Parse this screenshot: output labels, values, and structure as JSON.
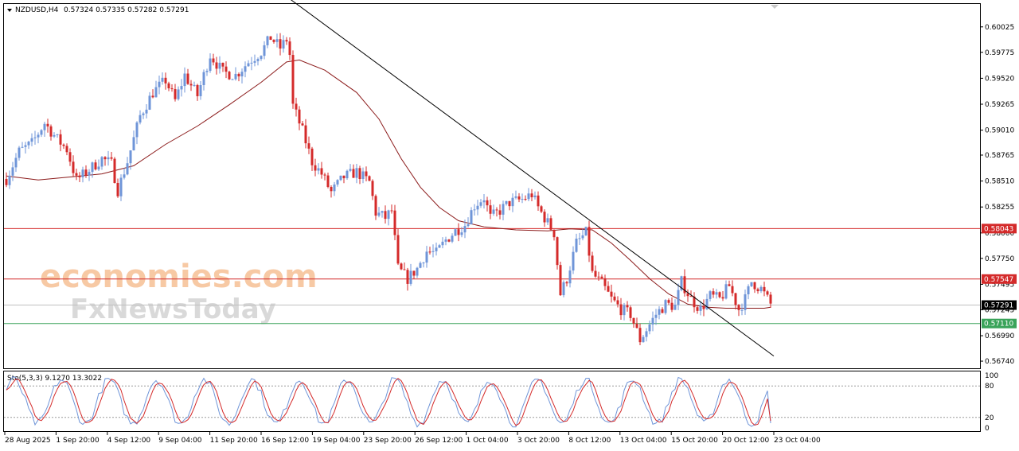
{
  "header": {
    "symbol": "NZDUSD,H4",
    "ohlc": "0.57324 0.57335 0.57282 0.57291"
  },
  "watermark": {
    "brand": "economies.com",
    "sub": "FxNewsToday"
  },
  "colors": {
    "bull": "#6f95d8",
    "bear": "#d42a2a",
    "ma": "#8b1a1a",
    "resistance": "#d42a2a",
    "support": "#3aa35a",
    "current": "#000000",
    "stoch_k": "#6f95d8",
    "stoch_d": "#d42a2a"
  },
  "chart_data": {
    "type": "candlestick",
    "symbol": "NZDUSD",
    "timeframe": "H4",
    "y_ticks": [
      "0.60025",
      "0.59775",
      "0.59520",
      "0.59265",
      "0.59010",
      "0.58765",
      "0.58510",
      "0.58255",
      "0.58000",
      "0.57750",
      "0.57495",
      "0.57245",
      "0.56990",
      "0.56740"
    ],
    "ylim": [
      0.5667,
      0.6025
    ],
    "x_ticks": [
      "28 Aug 2025",
      "1 Sep 20:00",
      "4 Sep 12:00",
      "9 Sep 04:00",
      "11 Sep 20:00",
      "16 Sep 12:00",
      "19 Sep 04:00",
      "23 Sep 20:00",
      "26 Sep 12:00",
      "1 Oct 04:00",
      "3 Oct 20:00",
      "8 Oct 12:00",
      "13 Oct 04:00",
      "15 Oct 20:00",
      "20 Oct 12:00",
      "23 Oct 04:00"
    ],
    "levels": [
      {
        "label": "0.58043",
        "value": 0.58043,
        "role": "resistance"
      },
      {
        "label": "0.57547",
        "value": 0.57547,
        "role": "resistance"
      },
      {
        "label": "0.57291",
        "value": 0.57291,
        "role": "current"
      },
      {
        "label": "0.57110",
        "value": 0.5711,
        "role": "support"
      }
    ],
    "trendline": {
      "from": {
        "bar": 89,
        "price": 0.603
      },
      "to": {
        "bar": 241,
        "price": 0.5679
      }
    },
    "close_path": [
      [
        0,
        0.5853
      ],
      [
        4,
        0.588
      ],
      [
        8,
        0.5888
      ],
      [
        12,
        0.5908
      ],
      [
        16,
        0.5892
      ],
      [
        19,
        0.5882
      ],
      [
        22,
        0.5852
      ],
      [
        26,
        0.5862
      ],
      [
        30,
        0.5873
      ],
      [
        33,
        0.5868
      ],
      [
        35,
        0.5842
      ],
      [
        38,
        0.587
      ],
      [
        42,
        0.5915
      ],
      [
        46,
        0.5938
      ],
      [
        50,
        0.595
      ],
      [
        53,
        0.593
      ],
      [
        56,
        0.5955
      ],
      [
        60,
        0.5935
      ],
      [
        64,
        0.5975
      ],
      [
        68,
        0.5958
      ],
      [
        72,
        0.5955
      ],
      [
        76,
        0.5968
      ],
      [
        80,
        0.5978
      ],
      [
        83,
        0.5992
      ],
      [
        86,
        0.5982
      ],
      [
        88,
        0.599
      ],
      [
        89,
        0.5975
      ],
      [
        90,
        0.5925
      ],
      [
        93,
        0.59
      ],
      [
        96,
        0.587
      ],
      [
        99,
        0.5858
      ],
      [
        102,
        0.584
      ],
      [
        106,
        0.5855
      ],
      [
        110,
        0.586
      ],
      [
        114,
        0.585
      ],
      [
        116,
        0.582
      ],
      [
        119,
        0.5815
      ],
      [
        121,
        0.5822
      ],
      [
        123,
        0.5765
      ],
      [
        126,
        0.5755
      ],
      [
        129,
        0.5765
      ],
      [
        132,
        0.5782
      ],
      [
        135,
        0.578
      ],
      [
        138,
        0.5793
      ],
      [
        141,
        0.5802
      ],
      [
        144,
        0.5808
      ],
      [
        147,
        0.5827
      ],
      [
        150,
        0.5835
      ],
      [
        152,
        0.5815
      ],
      [
        155,
        0.5822
      ],
      [
        158,
        0.583
      ],
      [
        162,
        0.5833
      ],
      [
        165,
        0.5838
      ],
      [
        167,
        0.5825
      ],
      [
        170,
        0.581
      ],
      [
        172,
        0.58
      ],
      [
        174,
        0.574
      ],
      [
        176,
        0.5755
      ],
      [
        179,
        0.579
      ],
      [
        182,
        0.58
      ],
      [
        184,
        0.576
      ],
      [
        187,
        0.575
      ],
      [
        190,
        0.5735
      ],
      [
        193,
        0.5725
      ],
      [
        196,
        0.572
      ],
      [
        199,
        0.5695
      ],
      [
        201,
        0.5705
      ],
      [
        204,
        0.572
      ],
      [
        207,
        0.573
      ],
      [
        210,
        0.5728
      ],
      [
        212,
        0.5752
      ],
      [
        215,
        0.5735
      ],
      [
        218,
        0.5725
      ],
      [
        221,
        0.5738
      ],
      [
        224,
        0.5735
      ],
      [
        227,
        0.5748
      ],
      [
        230,
        0.5725
      ],
      [
        232,
        0.5735
      ],
      [
        234,
        0.5752
      ],
      [
        237,
        0.5745
      ],
      [
        240,
        0.573
      ]
    ],
    "ma_path": [
      [
        0,
        0.5856
      ],
      [
        10,
        0.5852
      ],
      [
        20,
        0.5855
      ],
      [
        30,
        0.5858
      ],
      [
        40,
        0.5866
      ],
      [
        50,
        0.5887
      ],
      [
        60,
        0.5905
      ],
      [
        70,
        0.5926
      ],
      [
        80,
        0.5948
      ],
      [
        88,
        0.5968
      ],
      [
        92,
        0.597
      ],
      [
        100,
        0.596
      ],
      [
        110,
        0.5938
      ],
      [
        117,
        0.5912
      ],
      [
        124,
        0.5873
      ],
      [
        130,
        0.5845
      ],
      [
        136,
        0.5825
      ],
      [
        142,
        0.5812
      ],
      [
        150,
        0.5806
      ],
      [
        160,
        0.5803
      ],
      [
        170,
        0.5802
      ],
      [
        177,
        0.5804
      ],
      [
        184,
        0.5803
      ],
      [
        190,
        0.579
      ],
      [
        196,
        0.5773
      ],
      [
        202,
        0.5755
      ],
      [
        208,
        0.574
      ],
      [
        214,
        0.573
      ],
      [
        220,
        0.5727
      ],
      [
        226,
        0.5726
      ],
      [
        232,
        0.5726
      ],
      [
        238,
        0.5726
      ],
      [
        240,
        0.5727
      ]
    ],
    "stochastic": {
      "label": "Sto(5,3,3) 9.1270 13.3022",
      "k": 9.127,
      "d": 13.3022,
      "ylim": [
        0,
        100
      ],
      "y_ticks": [
        "100",
        "80",
        "20",
        "0"
      ],
      "levels": [
        80,
        20
      ]
    }
  }
}
